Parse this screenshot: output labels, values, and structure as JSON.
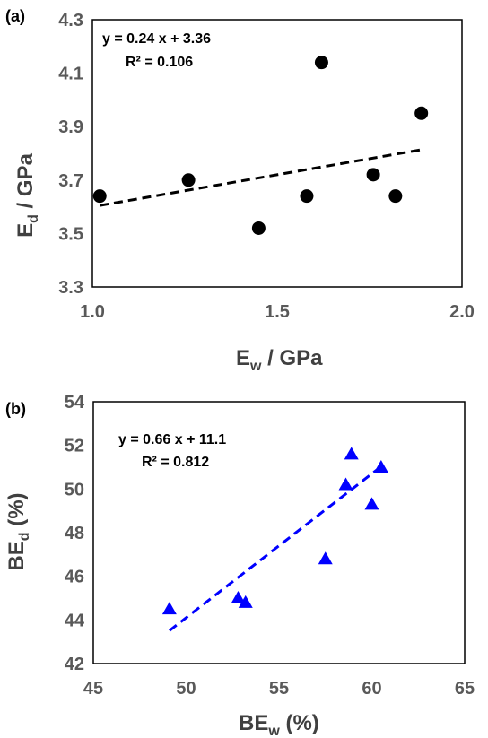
{
  "chart_data": [
    {
      "panel": "(a)",
      "type": "scatter",
      "xlabel": "E",
      "xlabel_sub": "w",
      "xlabel_unit": " / GPa",
      "ylabel": "E",
      "ylabel_sub": "d",
      "ylabel_unit": " / GPa",
      "xlim": [
        1.0,
        2.0
      ],
      "ylim": [
        3.3,
        4.3
      ],
      "xticks": [
        "1.0",
        "1.5",
        "2.0"
      ],
      "yticks": [
        "3.3",
        "3.5",
        "3.7",
        "3.9",
        "4.1",
        "4.3"
      ],
      "marker": "circle",
      "color": "#000000",
      "points": [
        {
          "x": 1.02,
          "y": 3.64
        },
        {
          "x": 1.26,
          "y": 3.7
        },
        {
          "x": 1.45,
          "y": 3.52
        },
        {
          "x": 1.58,
          "y": 3.64
        },
        {
          "x": 1.62,
          "y": 4.14
        },
        {
          "x": 1.76,
          "y": 3.72
        },
        {
          "x": 1.82,
          "y": 3.64
        },
        {
          "x": 1.89,
          "y": 3.95
        }
      ],
      "trendline": {
        "slope": 0.24,
        "intercept": 3.36,
        "x_range": [
          1.02,
          1.89
        ],
        "style": "dashed",
        "color": "#000000"
      },
      "equation": "y = 0.24 x + 3.36",
      "r2": "R² = 0.106",
      "grid": false
    },
    {
      "panel": "(b)",
      "type": "scatter",
      "xlabel": "BE",
      "xlabel_sub": "w",
      "xlabel_unit": " (%)",
      "ylabel": "BE",
      "ylabel_sub": "d",
      "ylabel_unit": "  (%)",
      "xlim": [
        45,
        65
      ],
      "ylim": [
        42,
        54
      ],
      "xticks": [
        "45",
        "50",
        "55",
        "60",
        "65"
      ],
      "yticks": [
        "42",
        "44",
        "46",
        "48",
        "50",
        "52",
        "54"
      ],
      "marker": "triangle",
      "color": "#0000ff",
      "points": [
        {
          "x": 49.1,
          "y": 44.5
        },
        {
          "x": 52.8,
          "y": 45.0
        },
        {
          "x": 53.2,
          "y": 44.8
        },
        {
          "x": 57.5,
          "y": 46.8
        },
        {
          "x": 58.6,
          "y": 50.2
        },
        {
          "x": 58.9,
          "y": 51.6
        },
        {
          "x": 60.0,
          "y": 49.3
        },
        {
          "x": 60.5,
          "y": 51.0
        }
      ],
      "trendline": {
        "slope": 0.66,
        "intercept": 11.1,
        "x_range": [
          49.1,
          60.5
        ],
        "style": "dashed",
        "color": "#0000ff"
      },
      "equation": "y = 0.66 x + 11.1",
      "r2": "R² = 0.812",
      "grid": false
    }
  ]
}
